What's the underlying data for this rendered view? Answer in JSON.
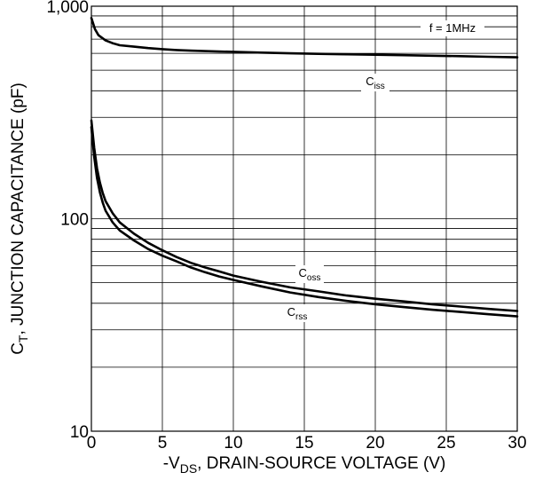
{
  "chart_data": {
    "type": "line",
    "title": "",
    "xlabel": {
      "prefix": "-V",
      "sub": "DS",
      "suffix": ", DRAIN-SOURCE VOLTAGE (V)"
    },
    "ylabel": {
      "prefix": "C",
      "sub": "T",
      "suffix": ", JUNCTION CAPACITANCE (pF)"
    },
    "xlim": [
      0,
      30
    ],
    "ylim": [
      10,
      1000
    ],
    "yscale": "log",
    "grid": true,
    "x_ticks": [
      0,
      5,
      10,
      15,
      20,
      25,
      30
    ],
    "x_tick_labels": [
      "0",
      "5",
      "10",
      "15",
      "20",
      "25",
      "30"
    ],
    "y_ticks": [
      10,
      100,
      1000
    ],
    "y_tick_labels": [
      "10",
      "100",
      "1,000"
    ],
    "annotation": "f = 1MHz",
    "series": [
      {
        "name": "C_iss",
        "label": {
          "main": "C",
          "sub": "iss"
        },
        "x": [
          0,
          0.25,
          0.5,
          1,
          1.5,
          2,
          3,
          4,
          5,
          6,
          7,
          8,
          9,
          10,
          12,
          14,
          16,
          18,
          20,
          22,
          24,
          26,
          28,
          30
        ],
        "y": [
          880,
          780,
          730,
          690,
          670,
          655,
          645,
          635,
          628,
          622,
          618,
          615,
          612,
          610,
          605,
          600,
          597,
          594,
          591,
          588,
          585,
          582,
          578,
          575
        ]
      },
      {
        "name": "C_oss",
        "label": {
          "main": "C",
          "sub": "oss"
        },
        "x": [
          0,
          0.2,
          0.4,
          0.6,
          0.8,
          1,
          1.5,
          2,
          3,
          4,
          5,
          6,
          7,
          8,
          9,
          10,
          12,
          14,
          16,
          18,
          20,
          22,
          24,
          26,
          28,
          30
        ],
        "y": [
          290,
          215,
          172,
          148,
          132,
          121,
          106,
          96,
          85,
          77,
          71,
          66,
          62,
          59,
          56.5,
          54,
          50.5,
          47.5,
          45.5,
          43.5,
          42,
          40.8,
          39.6,
          38.6,
          37.6,
          36.8
        ]
      },
      {
        "name": "C_rss",
        "label": {
          "main": "C",
          "sub": "rss"
        },
        "x": [
          0,
          0.2,
          0.4,
          0.6,
          0.8,
          1,
          1.5,
          2,
          3,
          4,
          5,
          6,
          7,
          8,
          9,
          10,
          12,
          14,
          16,
          18,
          20,
          22,
          24,
          26,
          28,
          30
        ],
        "y": [
          270,
          195,
          155,
          133,
          119,
          109,
          96,
          88,
          79,
          72,
          67,
          63,
          59,
          56,
          53.5,
          51.5,
          48,
          45,
          42.8,
          41,
          39.6,
          38.4,
          37.3,
          36.4,
          35.5,
          34.7
        ]
      }
    ]
  }
}
